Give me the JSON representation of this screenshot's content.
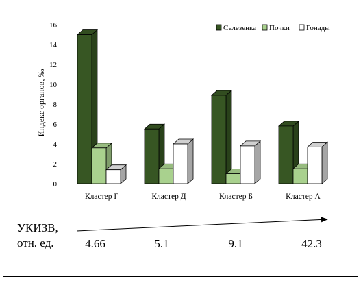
{
  "chart_data": {
    "type": "bar",
    "categories": [
      "Кластер Г",
      "Кластер Д",
      "Кластер Б",
      "Кластер А"
    ],
    "series": [
      {
        "name": "Селезенка",
        "values": [
          15.0,
          5.5,
          8.9,
          5.8
        ],
        "color": "#375623"
      },
      {
        "name": "Почки",
        "values": [
          3.6,
          1.5,
          1.0,
          1.5
        ],
        "color": "#a9d18e"
      },
      {
        "name": "Гонады",
        "values": [
          1.4,
          4.0,
          3.8,
          3.7
        ],
        "color": "#ffffff"
      }
    ],
    "ylabel": "Индекс органов, ‰",
    "ylim": [
      0,
      16
    ],
    "yticks": [
      0,
      2,
      4,
      6,
      8,
      10,
      12,
      14,
      16
    ],
    "grid": false,
    "legend": "top-right",
    "style": "3d"
  },
  "footer": {
    "label_line1": "УКИЗВ,",
    "label_line2": "отн. ед.",
    "values": [
      "4.66",
      "5.1",
      "9.1",
      "42.3"
    ]
  }
}
